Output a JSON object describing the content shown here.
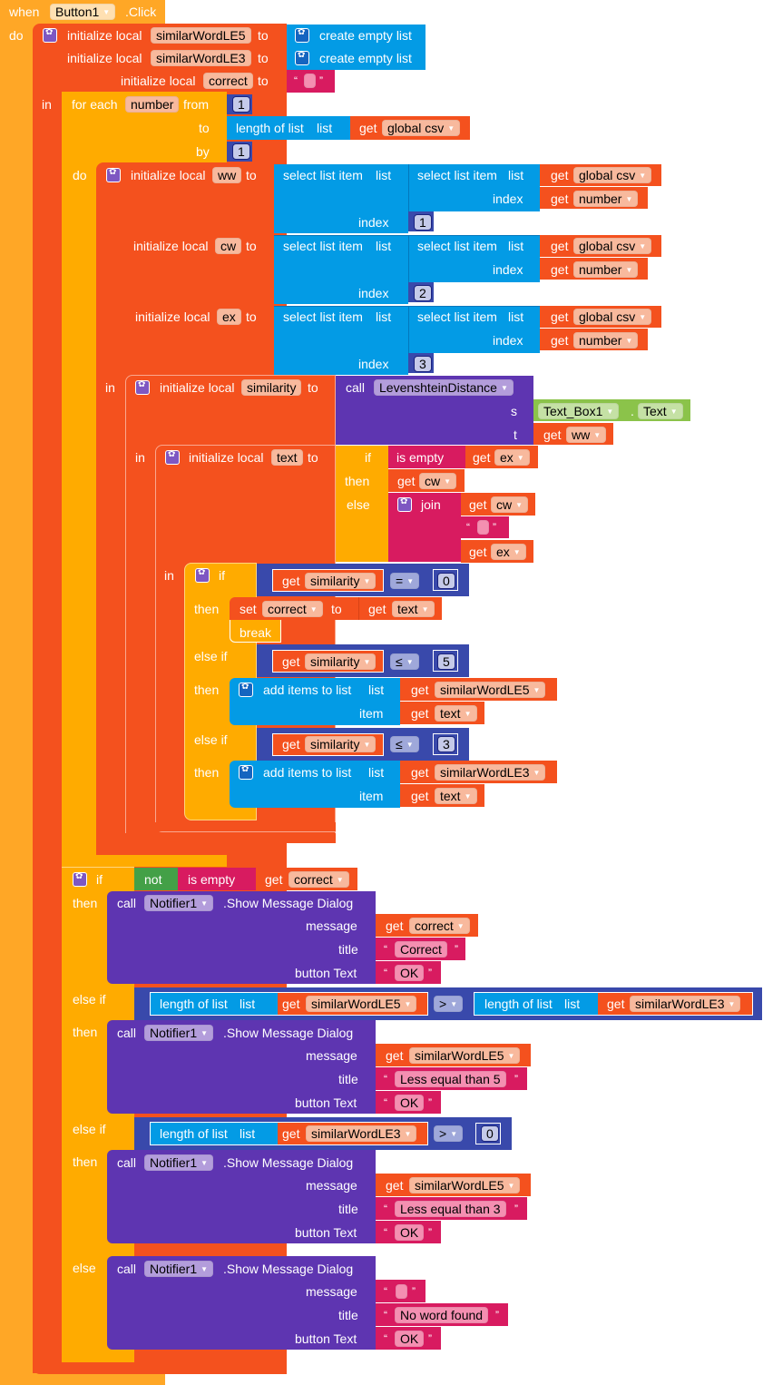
{
  "event": {
    "when": "when",
    "component": "Button1",
    "event_name": ".Click",
    "do": "do",
    "in": "in"
  },
  "kw": {
    "initialize_local": "initialize local",
    "to": "to",
    "in": "in",
    "do": "do",
    "create_empty_list": "create empty list",
    "for_each": "for each",
    "from": "from",
    "by": "by",
    "length_of_list": "length of list",
    "list": "list",
    "get": "get",
    "select_list_item": "select list item",
    "index": "index",
    "call": "call",
    "s": "s",
    "t": "t",
    "dot": ".",
    "if": "if",
    "then": "then",
    "else": "else",
    "else_if": "else if",
    "is_empty": "is empty",
    "join": "join",
    "set": "set",
    "break": "break",
    "add_items_to_list": "add items to list",
    "item": "item",
    "not": "not",
    "show_message_dialog": ".Show Message Dialog",
    "message": "message",
    "title": "title",
    "button_text": "button Text",
    "open_quote": "“",
    "close_quote": "”"
  },
  "vars": {
    "le5": "similarWordLE5",
    "le3": "similarWordLE3",
    "correct": "correct",
    "number": "number",
    "global_csv": "global csv",
    "ww": "ww",
    "cw": "cw",
    "ex": "ex",
    "similarity": "similarity",
    "text": "text"
  },
  "nums": {
    "one": "1",
    "two": "2",
    "three": "3",
    "zero": "0",
    "five": "5"
  },
  "ops": {
    "eq": "=",
    "le": "≤",
    "gt": ">"
  },
  "procedure": "LevenshteinDistance",
  "textbox": {
    "component": "Text_Box1",
    "property": "Text"
  },
  "notifier": "Notifier1",
  "strings": {
    "correct_title": "Correct",
    "ok": "OK",
    "le5_title": "Less equal than 5",
    "le3_title": "Less equal than 3",
    "no_word": "No word found"
  },
  "colors": {
    "event": "#FFA726",
    "variables": "#F4511E",
    "control": "#FFAB00",
    "lists": "#039BE5",
    "text": "#D81B60",
    "math": "#3949AB",
    "procedures": "#5E35B1",
    "logic": "#43A047",
    "components": "#8BC34A"
  }
}
